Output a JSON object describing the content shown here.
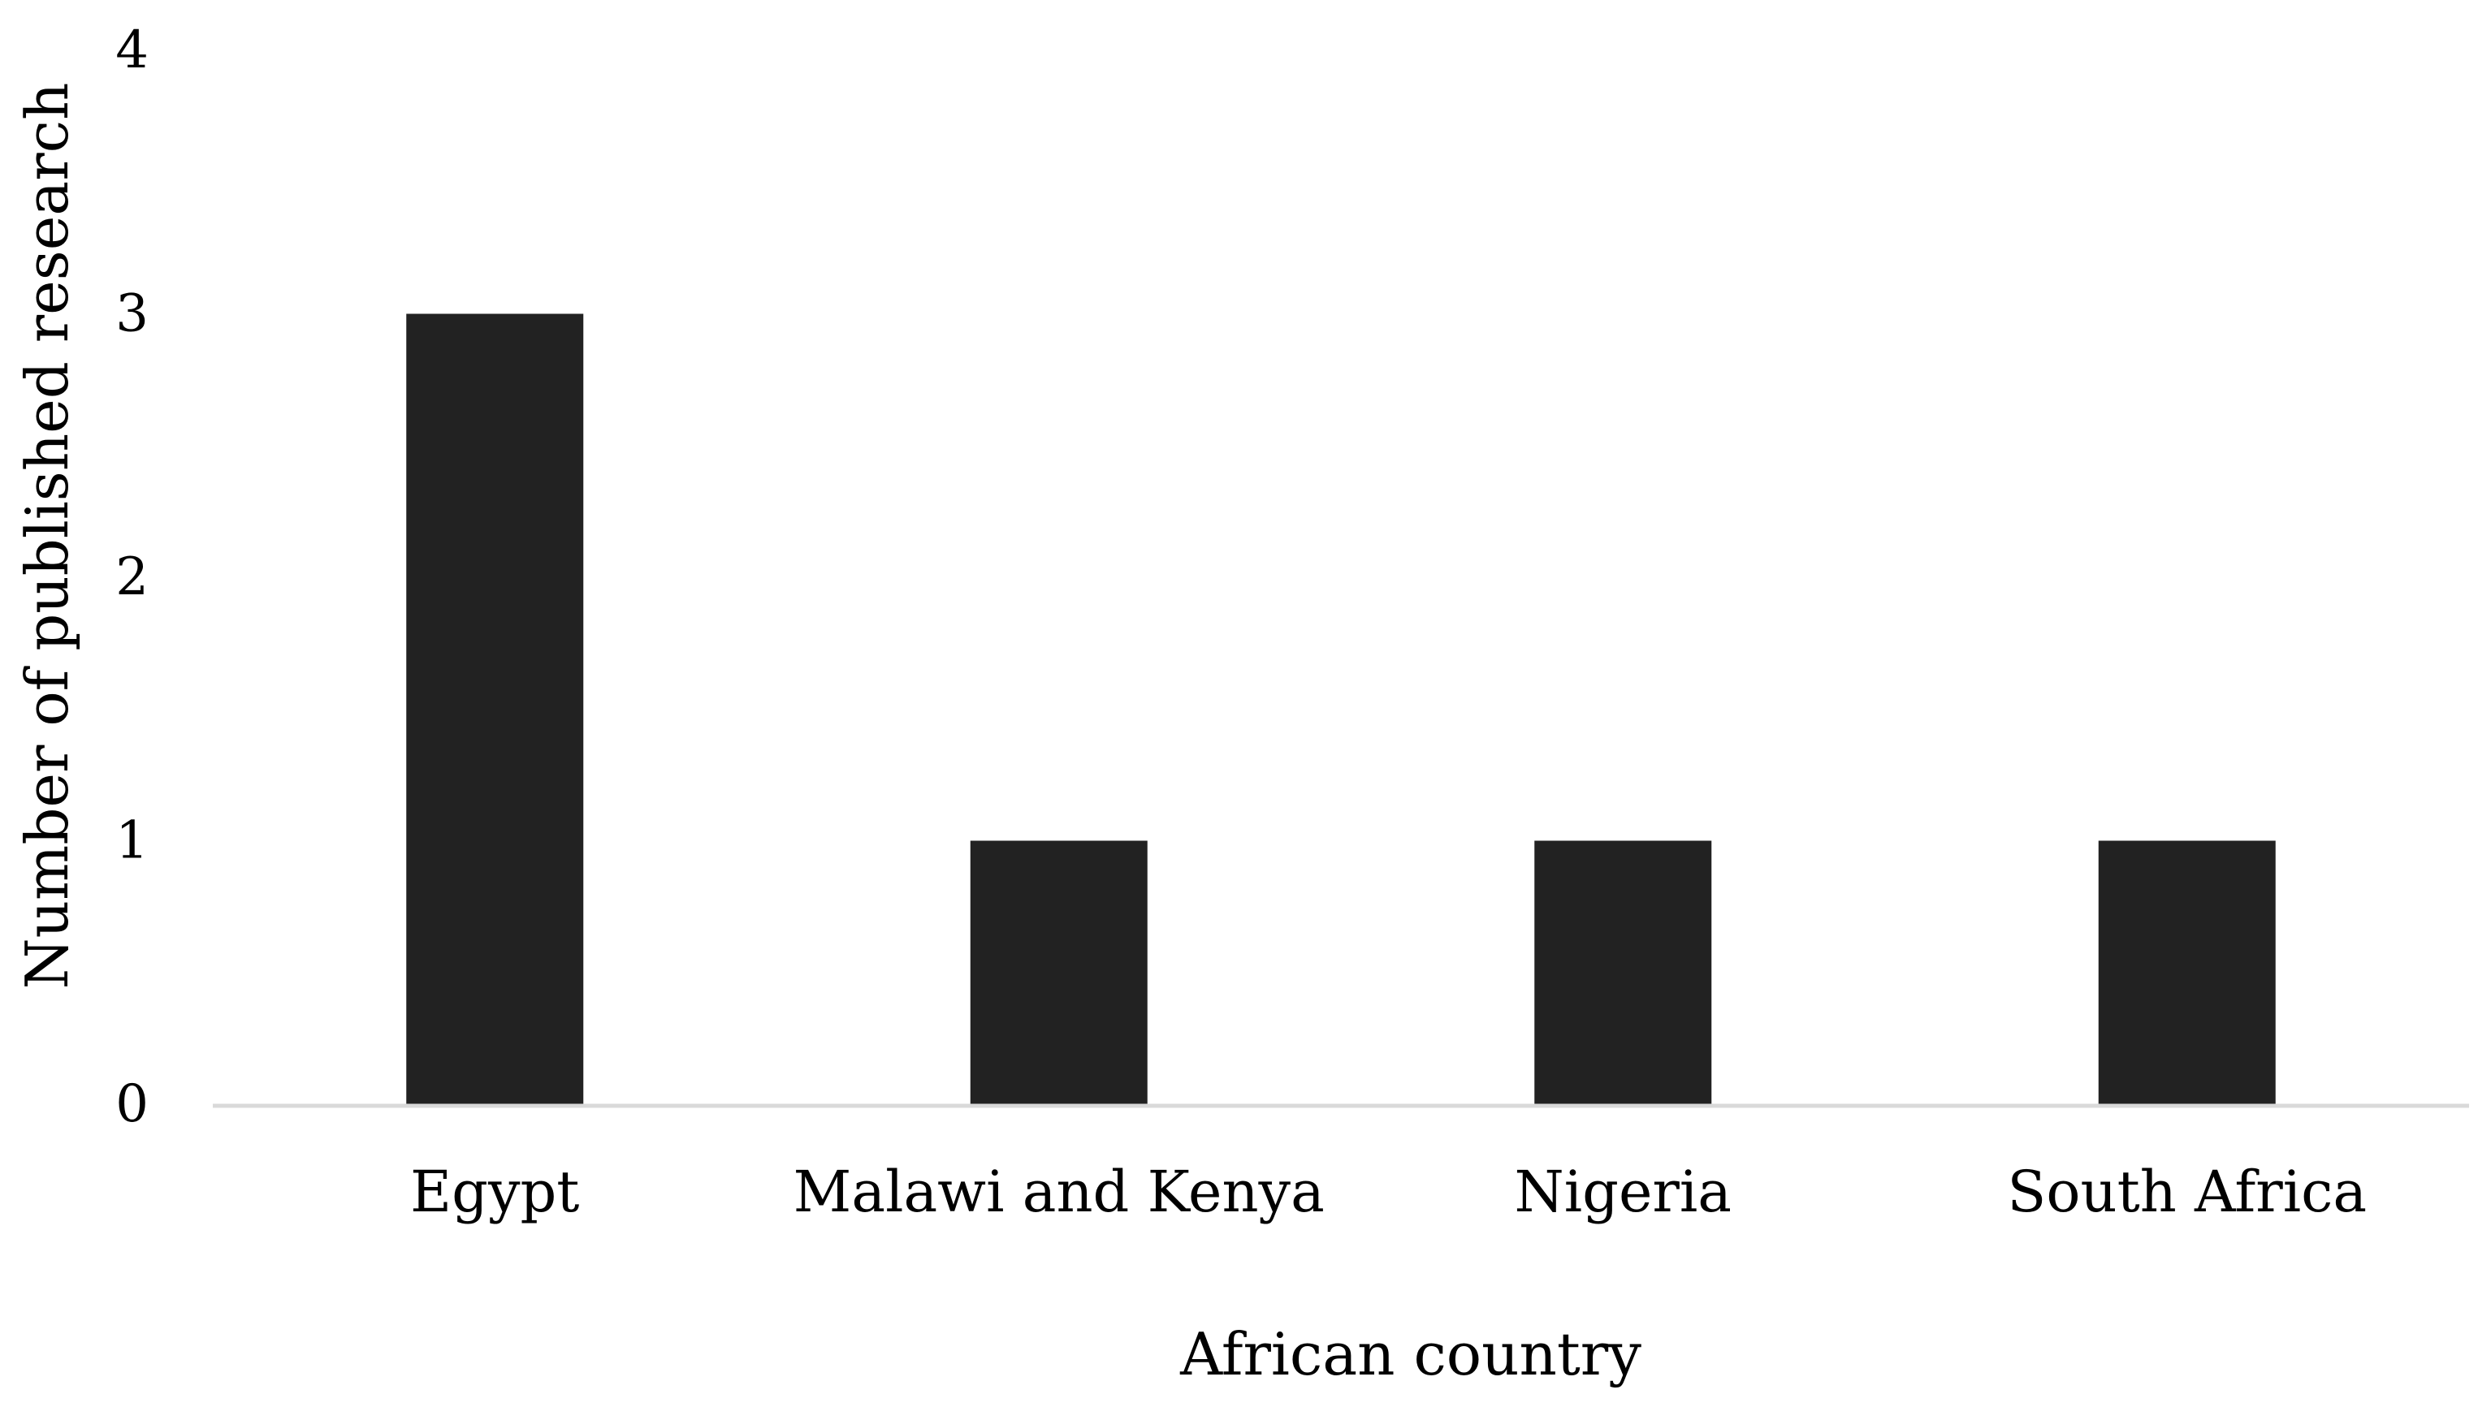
{
  "chart_data": {
    "type": "bar",
    "title": "",
    "xlabel": "African country",
    "ylabel": "Number of published research",
    "categories": [
      "Egypt",
      "Malawi and Kenya",
      "Nigeria",
      "South Africa"
    ],
    "values": [
      3,
      1,
      1,
      1
    ],
    "ylim": [
      0,
      4
    ],
    "yticks": [
      0,
      1,
      2,
      3,
      4
    ],
    "grid": false,
    "legend": "none",
    "colors": {
      "bar": "#222222",
      "axis": "#d9d9d9",
      "text": "#000000"
    }
  }
}
